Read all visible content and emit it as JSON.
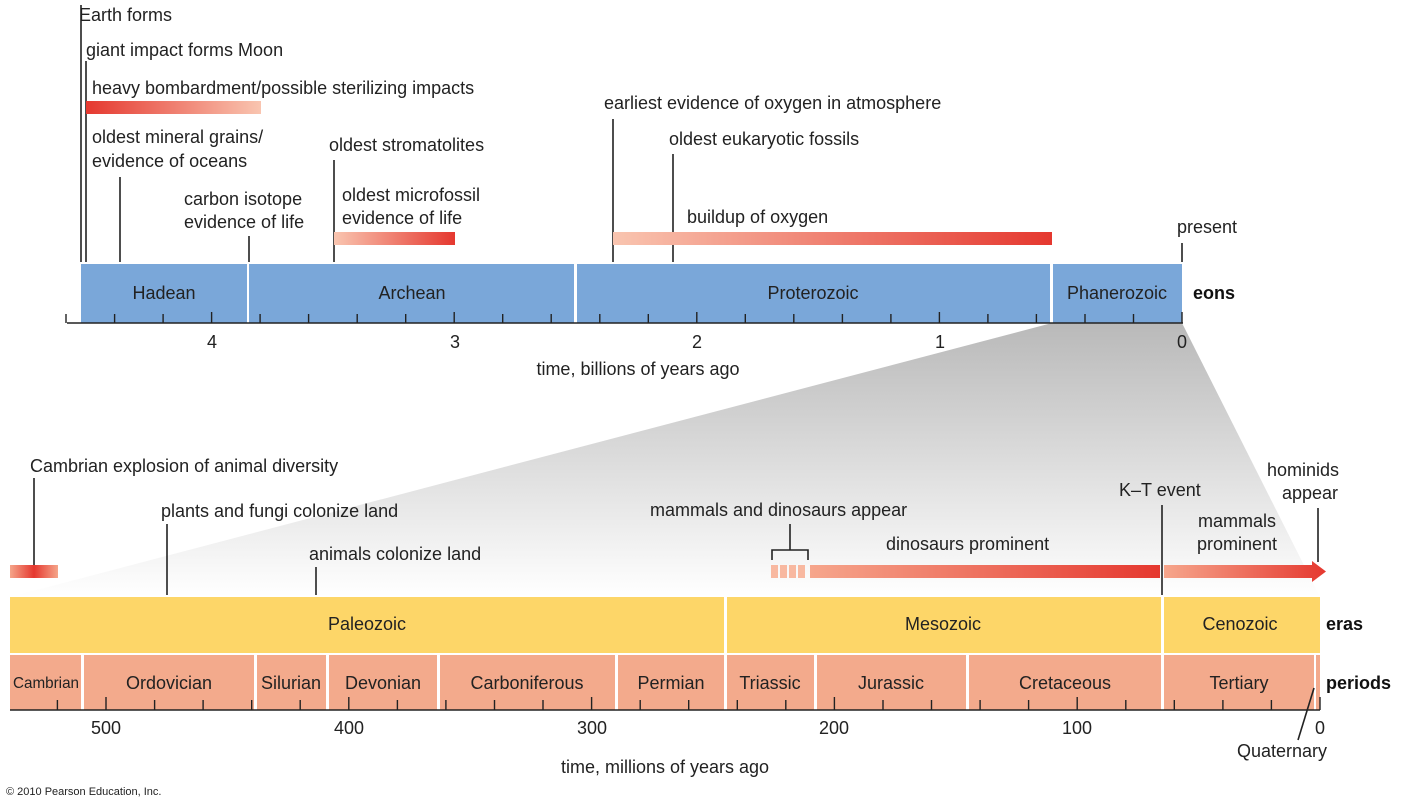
{
  "eons": {
    "segments": [
      "Hadean",
      "Archean",
      "Proterozoic",
      "Phanerozoic"
    ],
    "row_label": "eons",
    "ticks": [
      "4",
      "3",
      "2",
      "1",
      "0"
    ],
    "axis_label": "time, billions of years ago",
    "present_label": "present",
    "colors": {
      "bar": "#7aa7d9",
      "divider": "#ffffff"
    }
  },
  "eon_events": {
    "earth_forms": "Earth forms",
    "moon": "giant impact forms Moon",
    "bombardment": "heavy bombardment/possible sterilizing impacts",
    "mineral_line1": "oldest mineral grains/",
    "mineral_line2": "evidence of oceans",
    "carbon_line1": "carbon isotope",
    "carbon_line2": "evidence of life",
    "stromatolites": "oldest stromatolites",
    "microfossil_line1": "oldest microfossil",
    "microfossil_line2": "evidence of life",
    "oxygen_atmosphere": "earliest evidence of oxygen in atmosphere",
    "eukaryotic": "oldest eukaryotic fossils",
    "oxygen_buildup": "buildup of oxygen"
  },
  "eras": {
    "segments": [
      "Paleozoic",
      "Mesozoic",
      "Cenozoic"
    ],
    "row_label": "eras",
    "colors": {
      "bar": "#fdd668"
    }
  },
  "periods": {
    "segments": [
      "Cambrian",
      "Ordovician",
      "Silurian",
      "Devonian",
      "Carboniferous",
      "Permian",
      "Triassic",
      "Jurassic",
      "Cretaceous",
      "Tertiary"
    ],
    "row_label": "periods",
    "quaternary": "Quaternary",
    "ticks": [
      "500",
      "400",
      "300",
      "200",
      "100",
      "0"
    ],
    "axis_label": "time, millions of years ago",
    "colors": {
      "bar": "#f3aa8c"
    }
  },
  "era_events": {
    "cambrian_explosion": "Cambrian explosion of animal diversity",
    "plants_fungi": "plants and fungi colonize land",
    "animals_land": "animals colonize land",
    "mammals_dinos": "mammals and dinosaurs appear",
    "dinos_prominent": "dinosaurs prominent",
    "kt_event": "K–T event",
    "mammals_line1": "mammals",
    "mammals_line2": "prominent",
    "hominids_line1": "hominids",
    "hominids_line2": "appear"
  },
  "colors": {
    "event_bar": "#e8403a",
    "event_bar_light": "#f9c8b4",
    "zoom_fill": "#bdbdbd"
  },
  "copyright": "© 2010 Pearson Education, Inc."
}
